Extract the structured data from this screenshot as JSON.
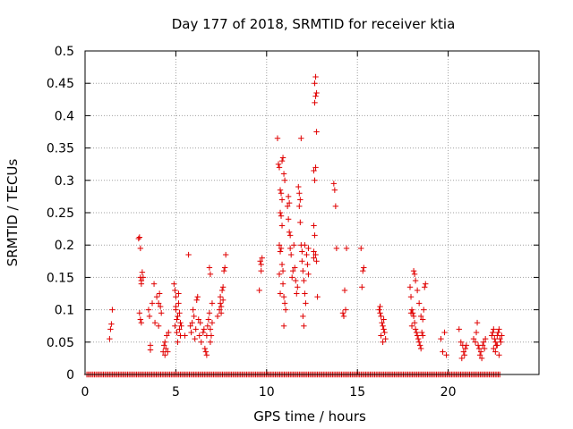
{
  "chart_data": {
    "type": "scatter",
    "title": "Day 177 of 2018, SRMTID for receiver ktia",
    "xlabel": "GPS time / hours",
    "ylabel": "SRMTID / TECUs",
    "xlim": [
      0,
      25
    ],
    "ylim": [
      0,
      0.5
    ],
    "xticks": [
      0,
      5,
      10,
      15,
      20
    ],
    "yticks": [
      0,
      0.05,
      0.1,
      0.15,
      0.2,
      0.25,
      0.3,
      0.35,
      0.4,
      0.45,
      0.5
    ],
    "grid": true,
    "marker": "+",
    "color": "#e00000",
    "baseline": {
      "y": 0,
      "x_start": 0.1,
      "x_end": 22.9,
      "step": 0.083
    },
    "series": [
      {
        "name": "SRMTID",
        "points": [
          [
            1.35,
            0.055
          ],
          [
            1.4,
            0.07
          ],
          [
            1.45,
            0.078
          ],
          [
            1.5,
            0.1
          ],
          [
            2.95,
            0.21
          ],
          [
            3.0,
            0.212
          ],
          [
            3.05,
            0.195
          ],
          [
            3.05,
            0.15
          ],
          [
            3.1,
            0.145
          ],
          [
            3.15,
            0.158
          ],
          [
            3.1,
            0.14
          ],
          [
            3.0,
            0.095
          ],
          [
            3.05,
            0.085
          ],
          [
            3.1,
            0.08
          ],
          [
            3.2,
            0.15
          ],
          [
            3.5,
            0.1
          ],
          [
            3.55,
            0.09
          ],
          [
            3.6,
            0.045
          ],
          [
            3.6,
            0.038
          ],
          [
            3.7,
            0.11
          ],
          [
            3.8,
            0.14
          ],
          [
            3.85,
            0.08
          ],
          [
            3.95,
            0.12
          ],
          [
            4.05,
            0.11
          ],
          [
            4.1,
            0.125
          ],
          [
            4.15,
            0.105
          ],
          [
            4.2,
            0.095
          ],
          [
            4.05,
            0.075
          ],
          [
            4.3,
            0.035
          ],
          [
            4.35,
            0.045
          ],
          [
            4.4,
            0.05
          ],
          [
            4.45,
            0.04
          ],
          [
            4.5,
            0.06
          ],
          [
            4.6,
            0.065
          ],
          [
            4.55,
            0.035
          ],
          [
            4.4,
            0.03
          ],
          [
            4.9,
            0.14
          ],
          [
            4.95,
            0.13
          ],
          [
            5.0,
            0.12
          ],
          [
            5.0,
            0.1
          ],
          [
            5.05,
            0.085
          ],
          [
            5.1,
            0.09
          ],
          [
            5.15,
            0.125
          ],
          [
            5.2,
            0.095
          ],
          [
            5.2,
            0.07
          ],
          [
            5.25,
            0.08
          ],
          [
            5.3,
            0.075
          ],
          [
            5.25,
            0.06
          ],
          [
            5.1,
            0.05
          ],
          [
            5.05,
            0.065
          ],
          [
            4.95,
            0.075
          ],
          [
            5.0,
            0.105
          ],
          [
            5.15,
            0.11
          ],
          [
            5.5,
            0.06
          ],
          [
            5.7,
            0.185
          ],
          [
            5.8,
            0.075
          ],
          [
            5.85,
            0.065
          ],
          [
            5.9,
            0.08
          ],
          [
            5.95,
            0.1
          ],
          [
            6.0,
            0.09
          ],
          [
            6.05,
            0.055
          ],
          [
            6.1,
            0.07
          ],
          [
            6.15,
            0.115
          ],
          [
            6.2,
            0.12
          ],
          [
            6.25,
            0.085
          ],
          [
            6.3,
            0.06
          ],
          [
            6.35,
            0.08
          ],
          [
            6.4,
            0.05
          ],
          [
            6.5,
            0.065
          ],
          [
            6.55,
            0.07
          ],
          [
            6.6,
            0.04
          ],
          [
            6.65,
            0.035
          ],
          [
            6.7,
            0.03
          ],
          [
            6.7,
            0.06
          ],
          [
            6.75,
            0.075
          ],
          [
            6.8,
            0.085
          ],
          [
            6.85,
            0.095
          ],
          [
            6.9,
            0.07
          ],
          [
            6.95,
            0.06
          ],
          [
            6.9,
            0.05
          ],
          [
            7.0,
            0.08
          ],
          [
            6.85,
            0.165
          ],
          [
            6.9,
            0.155
          ],
          [
            7.0,
            0.11
          ],
          [
            7.3,
            0.09
          ],
          [
            7.4,
            0.1
          ],
          [
            7.45,
            0.12
          ],
          [
            7.5,
            0.105
          ],
          [
            7.55,
            0.13
          ],
          [
            7.6,
            0.135
          ],
          [
            7.65,
            0.16
          ],
          [
            7.7,
            0.165
          ],
          [
            7.75,
            0.185
          ],
          [
            7.6,
            0.115
          ],
          [
            7.5,
            0.095
          ],
          [
            7.45,
            0.11
          ],
          [
            9.6,
            0.13
          ],
          [
            9.65,
            0.175
          ],
          [
            9.7,
            0.17
          ],
          [
            9.75,
            0.18
          ],
          [
            9.7,
            0.16
          ],
          [
            10.6,
            0.365
          ],
          [
            10.65,
            0.325
          ],
          [
            10.7,
            0.32
          ],
          [
            10.75,
            0.285
          ],
          [
            10.8,
            0.28
          ],
          [
            10.85,
            0.27
          ],
          [
            10.75,
            0.25
          ],
          [
            10.8,
            0.245
          ],
          [
            10.85,
            0.23
          ],
          [
            10.7,
            0.2
          ],
          [
            10.75,
            0.19
          ],
          [
            10.8,
            0.195
          ],
          [
            10.85,
            0.17
          ],
          [
            10.9,
            0.16
          ],
          [
            10.9,
            0.14
          ],
          [
            10.95,
            0.12
          ],
          [
            11.0,
            0.11
          ],
          [
            11.05,
            0.1
          ],
          [
            10.95,
            0.075
          ],
          [
            10.85,
            0.33
          ],
          [
            10.9,
            0.335
          ],
          [
            10.95,
            0.31
          ],
          [
            11.0,
            0.3
          ],
          [
            10.7,
            0.155
          ],
          [
            10.75,
            0.125
          ],
          [
            11.15,
            0.26
          ],
          [
            11.2,
            0.275
          ],
          [
            11.25,
            0.22
          ],
          [
            11.3,
            0.195
          ],
          [
            11.35,
            0.185
          ],
          [
            11.4,
            0.15
          ],
          [
            11.45,
            0.16
          ],
          [
            11.5,
            0.2
          ],
          [
            11.55,
            0.165
          ],
          [
            11.6,
            0.145
          ],
          [
            11.65,
            0.125
          ],
          [
            11.7,
            0.135
          ],
          [
            11.75,
            0.29
          ],
          [
            11.8,
            0.28
          ],
          [
            11.85,
            0.27
          ],
          [
            11.8,
            0.26
          ],
          [
            11.85,
            0.235
          ],
          [
            11.9,
            0.2
          ],
          [
            11.95,
            0.19
          ],
          [
            11.9,
            0.365
          ],
          [
            11.95,
            0.175
          ],
          [
            12.0,
            0.16
          ],
          [
            12.05,
            0.145
          ],
          [
            12.1,
            0.125
          ],
          [
            12.15,
            0.11
          ],
          [
            12.0,
            0.09
          ],
          [
            12.05,
            0.075
          ],
          [
            12.1,
            0.2
          ],
          [
            12.2,
            0.185
          ],
          [
            12.25,
            0.17
          ],
          [
            12.3,
            0.155
          ],
          [
            12.3,
            0.195
          ],
          [
            11.2,
            0.24
          ],
          [
            11.25,
            0.265
          ],
          [
            11.3,
            0.215
          ],
          [
            12.6,
            0.315
          ],
          [
            12.65,
            0.3
          ],
          [
            12.7,
            0.32
          ],
          [
            12.75,
            0.375
          ],
          [
            12.6,
            0.23
          ],
          [
            12.65,
            0.215
          ],
          [
            12.7,
            0.185
          ],
          [
            12.6,
            0.18
          ],
          [
            12.75,
            0.175
          ],
          [
            12.8,
            0.12
          ],
          [
            12.65,
            0.45
          ],
          [
            12.7,
            0.46
          ],
          [
            12.75,
            0.435
          ],
          [
            12.7,
            0.43
          ],
          [
            12.65,
            0.42
          ],
          [
            12.6,
            0.19
          ],
          [
            13.7,
            0.295
          ],
          [
            13.75,
            0.285
          ],
          [
            13.8,
            0.26
          ],
          [
            13.85,
            0.195
          ],
          [
            14.2,
            0.095
          ],
          [
            14.3,
            0.13
          ],
          [
            14.35,
            0.1
          ],
          [
            14.4,
            0.195
          ],
          [
            14.25,
            0.09
          ],
          [
            15.2,
            0.195
          ],
          [
            15.3,
            0.16
          ],
          [
            15.35,
            0.165
          ],
          [
            15.25,
            0.135
          ],
          [
            16.2,
            0.1
          ],
          [
            16.25,
            0.095
          ],
          [
            16.3,
            0.09
          ],
          [
            16.35,
            0.08
          ],
          [
            16.4,
            0.075
          ],
          [
            16.45,
            0.07
          ],
          [
            16.5,
            0.065
          ],
          [
            16.55,
            0.055
          ],
          [
            16.3,
            0.06
          ],
          [
            16.4,
            0.05
          ],
          [
            16.25,
            0.105
          ],
          [
            16.45,
            0.085
          ],
          [
            17.9,
            0.135
          ],
          [
            17.95,
            0.12
          ],
          [
            18.0,
            0.1
          ],
          [
            18.05,
            0.095
          ],
          [
            18.1,
            0.09
          ],
          [
            18.15,
            0.08
          ],
          [
            18.2,
            0.07
          ],
          [
            18.25,
            0.065
          ],
          [
            18.3,
            0.06
          ],
          [
            18.35,
            0.055
          ],
          [
            18.4,
            0.05
          ],
          [
            18.45,
            0.045
          ],
          [
            18.5,
            0.04
          ],
          [
            18.55,
            0.065
          ],
          [
            18.6,
            0.06
          ],
          [
            18.65,
            0.1
          ],
          [
            18.7,
            0.135
          ],
          [
            18.75,
            0.14
          ],
          [
            18.1,
            0.16
          ],
          [
            18.15,
            0.155
          ],
          [
            18.2,
            0.145
          ],
          [
            18.3,
            0.13
          ],
          [
            18.4,
            0.11
          ],
          [
            18.5,
            0.09
          ],
          [
            18.6,
            0.085
          ],
          [
            18.0,
            0.075
          ],
          [
            17.95,
            0.095
          ],
          [
            19.6,
            0.055
          ],
          [
            19.7,
            0.035
          ],
          [
            19.8,
            0.065
          ],
          [
            19.9,
            0.03
          ],
          [
            20.6,
            0.07
          ],
          [
            20.7,
            0.05
          ],
          [
            20.8,
            0.045
          ],
          [
            20.85,
            0.035
          ],
          [
            20.9,
            0.03
          ],
          [
            20.95,
            0.04
          ],
          [
            21.0,
            0.045
          ],
          [
            20.75,
            0.025
          ],
          [
            21.4,
            0.055
          ],
          [
            21.5,
            0.05
          ],
          [
            21.55,
            0.065
          ],
          [
            21.6,
            0.08
          ],
          [
            21.65,
            0.045
          ],
          [
            21.7,
            0.04
          ],
          [
            21.75,
            0.03
          ],
          [
            21.8,
            0.035
          ],
          [
            21.85,
            0.025
          ],
          [
            21.9,
            0.045
          ],
          [
            21.95,
            0.05
          ],
          [
            22.0,
            0.04
          ],
          [
            22.05,
            0.055
          ],
          [
            22.4,
            0.06
          ],
          [
            22.45,
            0.065
          ],
          [
            22.5,
            0.07
          ],
          [
            22.55,
            0.055
          ],
          [
            22.6,
            0.05
          ],
          [
            22.65,
            0.045
          ],
          [
            22.7,
            0.06
          ],
          [
            22.75,
            0.065
          ],
          [
            22.8,
            0.07
          ],
          [
            22.85,
            0.055
          ],
          [
            22.9,
            0.05
          ],
          [
            22.95,
            0.06
          ],
          [
            22.5,
            0.04
          ],
          [
            22.6,
            0.035
          ],
          [
            22.7,
            0.045
          ],
          [
            22.8,
            0.03
          ]
        ]
      }
    ]
  }
}
